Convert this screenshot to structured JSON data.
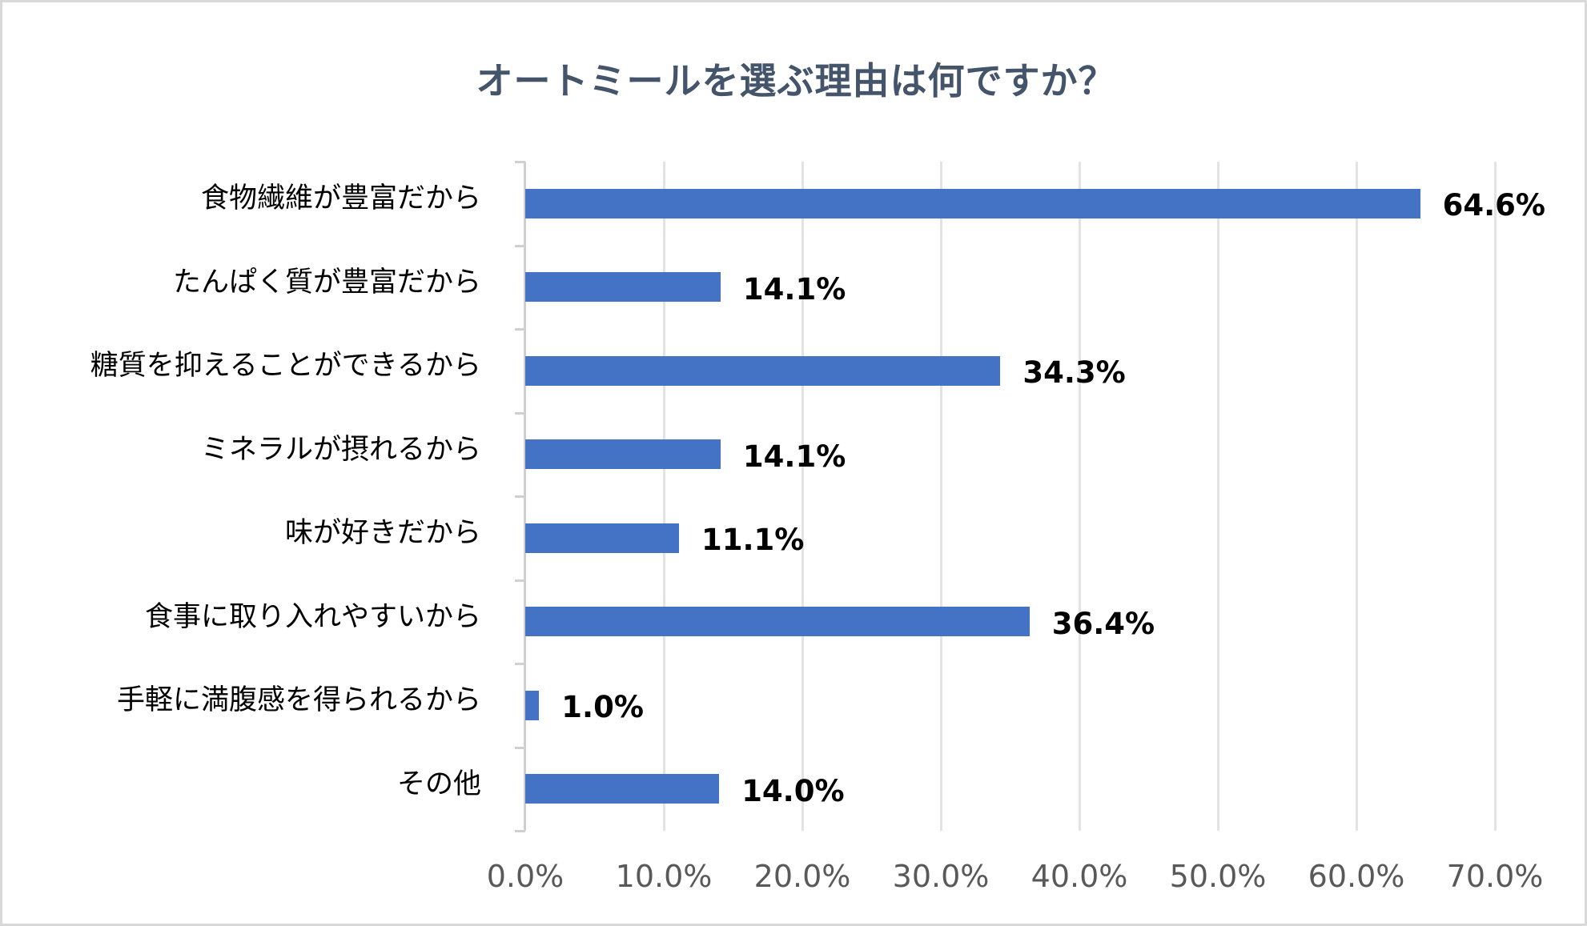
{
  "chart_data": {
    "type": "bar",
    "orientation": "horizontal",
    "title": "オートミールを選ぶ理由は何ですか？",
    "categories": [
      "食物繊維が豊富だから",
      "たんぱく質が豊富だから",
      "糖質を抑えることができるから",
      "ミネラルが摂れるから",
      "味が好きだから",
      "食事に取り入れやすいから",
      "手軽に満腹感を得られるから",
      "その他"
    ],
    "values": [
      64.6,
      14.1,
      34.3,
      14.1,
      11.1,
      36.4,
      1.0,
      14.0
    ],
    "value_labels": [
      "64.6%",
      "14.1%",
      "34.3%",
      "14.1%",
      "11.1%",
      "36.4%",
      "1.0%",
      "14.0%"
    ],
    "xlabel": "",
    "ylabel": "",
    "xlim": [
      0,
      70
    ],
    "x_ticks": [
      "0.0%",
      "10.0%",
      "20.0%",
      "30.0%",
      "40.0%",
      "50.0%",
      "60.0%",
      "70.0%"
    ],
    "grid": true,
    "legend": null,
    "bar_color": "#4472C4",
    "title_color": "#44546A"
  }
}
